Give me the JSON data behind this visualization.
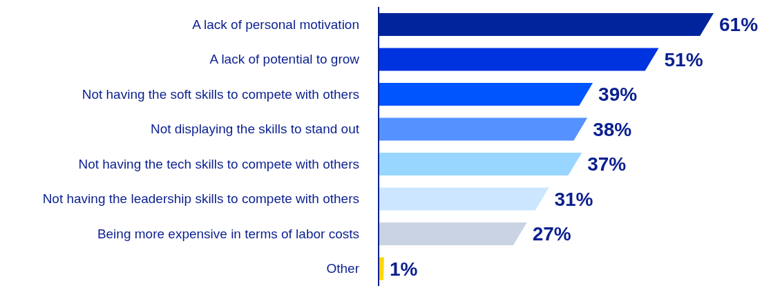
{
  "chart_data": {
    "type": "bar",
    "orientation": "horizontal",
    "categories": [
      "A lack of personal motivation",
      "A lack of potential to grow",
      "Not having the soft skills to compete with others",
      "Not displaying the skills to stand out",
      "Not having the tech skills to compete with others",
      "Not having the leadership skills to compete with others",
      "Being more expensive in terms of labor costs",
      "Other"
    ],
    "values": [
      61,
      51,
      39,
      38,
      37,
      31,
      27,
      1
    ],
    "value_labels": [
      "61%",
      "51%",
      "39%",
      "38%",
      "37%",
      "31%",
      "27%",
      "1%"
    ],
    "colors": [
      "#00249c",
      "#0033e0",
      "#0055ff",
      "#5591ff",
      "#99d6ff",
      "#cce6ff",
      "#c9d3e3",
      "#ffd700"
    ]
  }
}
